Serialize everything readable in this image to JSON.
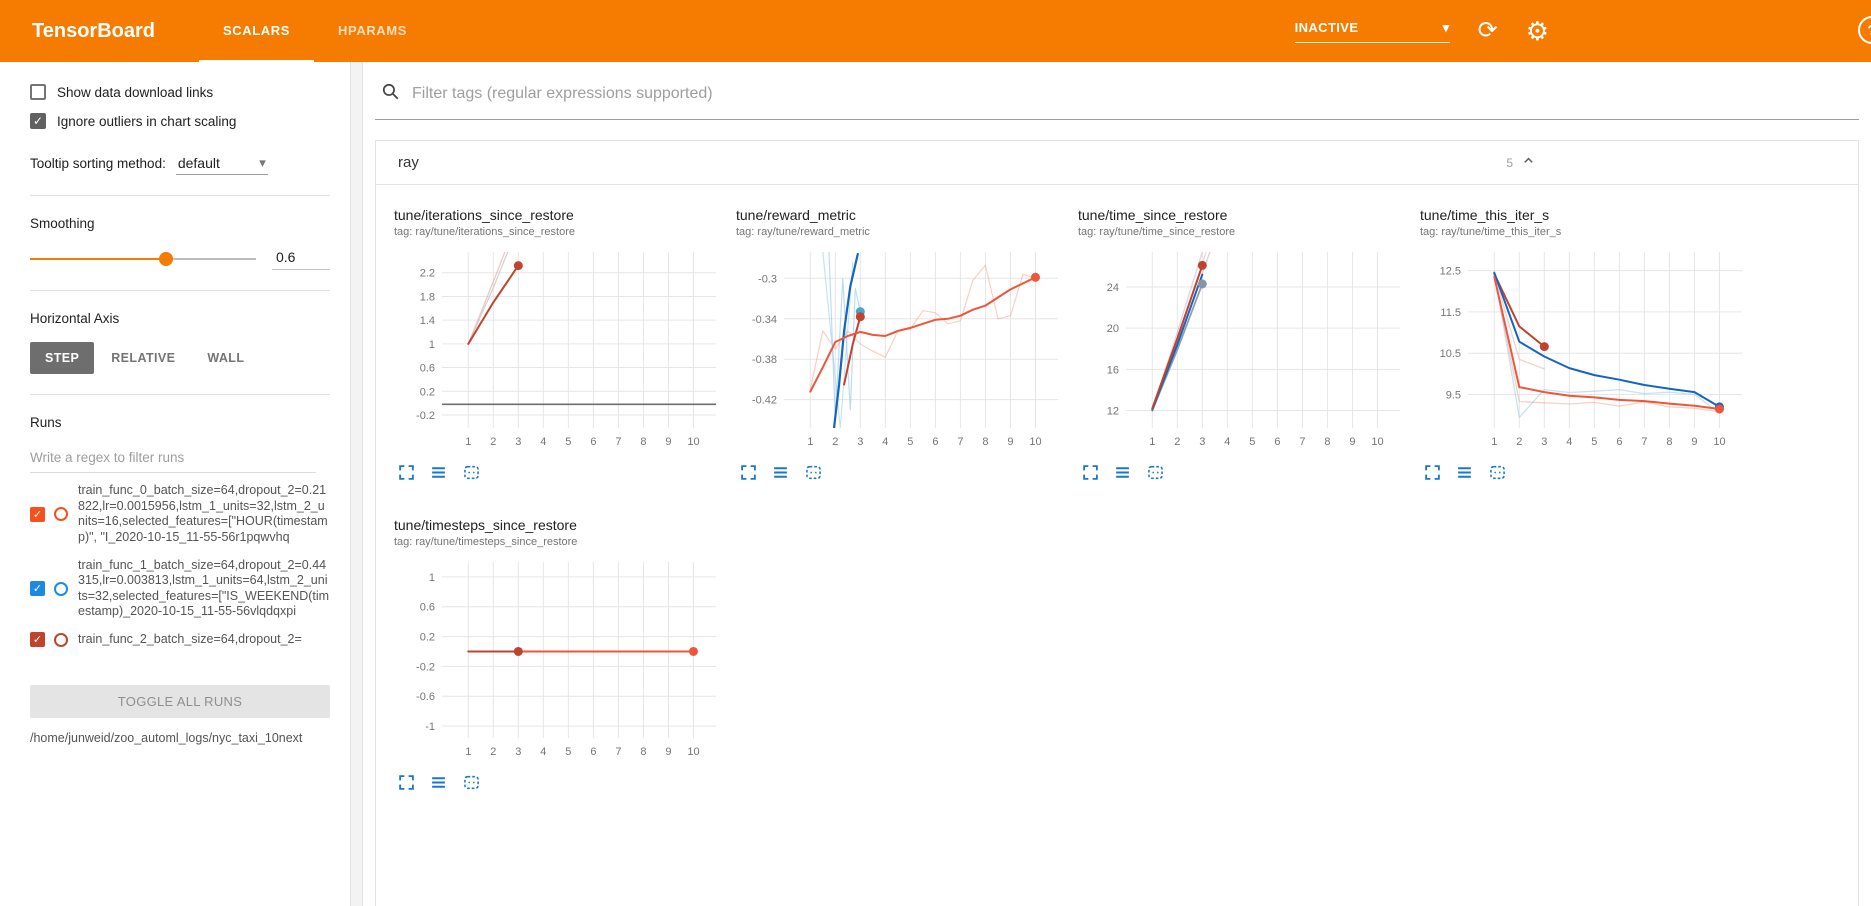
{
  "header": {
    "brand": "TensorBoard",
    "tabs": [
      {
        "label": "SCALARS",
        "active": true
      },
      {
        "label": "HPARAMS",
        "active": false
      }
    ],
    "status": "INACTIVE"
  },
  "sidebar": {
    "checkboxes": [
      {
        "label": "Show data download links",
        "checked": false
      },
      {
        "label": "Ignore outliers in chart scaling",
        "checked": true
      }
    ],
    "tooltip_sorting": {
      "label": "Tooltip sorting method:",
      "value": "default"
    },
    "smoothing": {
      "label": "Smoothing",
      "value": "0.6"
    },
    "horizontal_axis": {
      "label": "Horizontal Axis",
      "options": [
        "STEP",
        "RELATIVE",
        "WALL"
      ],
      "selected": "STEP"
    },
    "runs": {
      "label": "Runs",
      "filter_placeholder": "Write a regex to filter runs",
      "items": [
        {
          "name": "train_func_0_batch_size=64,dropout_2=0.21822,lr=0.0015956,lstm_1_units=32,lstm_2_units=16,selected_features=[\"HOUR(timestamp)\", \"I_2020-10-15_11-55-56r1pqwvhq",
          "color": "#f4511e",
          "checked": true
        },
        {
          "name": "train_func_1_batch_size=64,dropout_2=0.44315,lr=0.003813,lstm_1_units=64,lstm_2_units=32,selected_features=[\"IS_WEEKEND(timestamp)_2020-10-15_11-55-56vlqdqxpi",
          "color": "#1e88e5",
          "checked": true
        },
        {
          "name": "train_func_2_batch_size=64,dropout_2=",
          "color": "#c0432d",
          "checked": true
        }
      ],
      "toggle_all": "TOGGLE ALL RUNS",
      "log_dir": "/home/junweid/zoo_automl_logs/nyc_taxi_10next"
    }
  },
  "main": {
    "filter_placeholder": "Filter tags (regular expressions supported)",
    "card": {
      "title": "ray",
      "count": "5"
    }
  },
  "colors": {
    "header": "#f57c00",
    "accent_blue": "#1976d2",
    "run_orange": "#f4511e",
    "run_blue": "#1e88e5",
    "line_darkred": "#c0432d",
    "line_blue": "#1565c0",
    "line_orange": "#ef553a"
  },
  "chart_data": [
    {
      "type": "line",
      "title": "tune/iterations_since_restore",
      "tag": "tag: ray/tune/iterations_since_restore",
      "xlim": [
        -0.05,
        10.9
      ],
      "ylim": [
        -0.42,
        2.55
      ],
      "xticks": [
        1,
        2,
        3,
        4,
        5,
        6,
        7,
        8,
        9,
        10
      ],
      "yticks": [
        {
          "v": -0.2,
          "label": "-0.2"
        },
        {
          "v": 0.2,
          "label": "0.2"
        },
        {
          "v": 0.6,
          "label": "0.6"
        },
        {
          "v": 1,
          "label": "1"
        },
        {
          "v": 1.4,
          "label": "1.4"
        },
        {
          "v": 1.8,
          "label": "1.8"
        },
        {
          "v": 2.2,
          "label": "2.2"
        }
      ],
      "series": [
        {
          "color": "#e59a8e",
          "opacity": 0.55,
          "width": 1.3,
          "points": [
            [
              1,
              1
            ],
            [
              2,
              2.05
            ],
            [
              3.25,
              3.4
            ]
          ]
        },
        {
          "color": "#c2c2c2",
          "opacity": 0.7,
          "width": 1.3,
          "points": [
            [
              1,
              1
            ],
            [
              2,
              1.95
            ],
            [
              3.4,
              3.4
            ]
          ]
        },
        {
          "color": "#c0432d",
          "opacity": 1,
          "width": 2,
          "points": [
            [
              1,
              1
            ],
            [
              2,
              1.7
            ],
            [
              3,
              2.32
            ]
          ],
          "dots": [
            [
              3,
              2.32
            ]
          ]
        },
        {
          "color": "#6e6e6e",
          "opacity": 1,
          "width": 1.6,
          "points": [
            [
              -0.05,
              -0.02
            ],
            [
              10.9,
              -0.02
            ]
          ]
        }
      ]
    },
    {
      "type": "line",
      "title": "tune/reward_metric",
      "tag": "tag: ray/tune/reward_metric",
      "xlim": [
        -0.05,
        10.9
      ],
      "ylim": [
        -0.448,
        -0.274
      ],
      "xticks": [
        1,
        2,
        3,
        4,
        5,
        6,
        7,
        8,
        9,
        10
      ],
      "yticks": [
        {
          "v": -0.42,
          "label": "-0.42"
        },
        {
          "v": -0.38,
          "label": "-0.38"
        },
        {
          "v": -0.34,
          "label": "-0.34"
        },
        {
          "v": -0.3,
          "label": "-0.3"
        }
      ],
      "series": [
        {
          "color": "#f0977f",
          "opacity": 0.45,
          "width": 1.2,
          "points": [
            [
              1,
              -0.41
            ],
            [
              1.5,
              -0.352
            ],
            [
              2,
              -0.37
            ],
            [
              2.5,
              -0.352
            ],
            [
              3,
              -0.365
            ],
            [
              3.5,
              -0.372
            ],
            [
              4,
              -0.378
            ],
            [
              4.5,
              -0.352
            ],
            [
              5,
              -0.35
            ],
            [
              5.5,
              -0.332
            ],
            [
              6,
              -0.334
            ],
            [
              6.5,
              -0.345
            ],
            [
              7,
              -0.342
            ],
            [
              7.5,
              -0.302
            ],
            [
              8,
              -0.287
            ],
            [
              8.5,
              -0.34
            ],
            [
              9,
              -0.337
            ],
            [
              9.5,
              -0.296
            ],
            [
              10,
              -0.3
            ]
          ]
        },
        {
          "color": "#b8dcf0",
          "opacity": 0.8,
          "width": 1.2,
          "points": [
            [
              1.5,
              -0.274
            ],
            [
              2.2,
              -0.448
            ],
            [
              2.7,
              -0.284
            ]
          ]
        },
        {
          "color": "#8fc6e8",
          "opacity": 0.6,
          "width": 1.2,
          "points": [
            [
              1.75,
              -0.274
            ],
            [
              2,
              -0.44
            ],
            [
              2.3,
              -0.3
            ],
            [
              2.6,
              -0.43
            ],
            [
              2.8,
              -0.31
            ],
            [
              3,
              -0.333
            ]
          ],
          "dots": [
            [
              3,
              -0.333
            ]
          ],
          "dot_color": "#46a6cc"
        },
        {
          "color": "#1565c0",
          "opacity": 1,
          "width": 2.2,
          "points": [
            [
              1.95,
              -0.448
            ],
            [
              2.15,
              -0.405
            ],
            [
              2.35,
              -0.352
            ],
            [
              2.6,
              -0.308
            ],
            [
              2.9,
              -0.276
            ]
          ]
        },
        {
          "color": "#c0432d",
          "opacity": 1,
          "width": 2,
          "points": [
            [
              2.35,
              -0.405
            ],
            [
              2.7,
              -0.365
            ],
            [
              3,
              -0.338
            ]
          ],
          "dots": [
            [
              3,
              -0.338
            ]
          ]
        },
        {
          "color": "#ef553a",
          "opacity": 1,
          "width": 2,
          "points": [
            [
              1,
              -0.412
            ],
            [
              1.5,
              -0.388
            ],
            [
              2,
              -0.363
            ],
            [
              2.5,
              -0.357
            ],
            [
              3,
              -0.353
            ],
            [
              3.5,
              -0.356
            ],
            [
              4,
              -0.357
            ],
            [
              4.5,
              -0.352
            ],
            [
              5,
              -0.349
            ],
            [
              5.5,
              -0.345
            ],
            [
              6,
              -0.341
            ],
            [
              6.5,
              -0.34
            ],
            [
              7,
              -0.337
            ],
            [
              7.5,
              -0.331
            ],
            [
              8,
              -0.327
            ],
            [
              8.5,
              -0.319
            ],
            [
              9,
              -0.311
            ],
            [
              9.5,
              -0.305
            ],
            [
              10,
              -0.299
            ]
          ],
          "dots": [
            [
              10,
              -0.299
            ]
          ]
        }
      ]
    },
    {
      "type": "line",
      "title": "tune/time_since_restore",
      "tag": "tag: ray/tune/time_since_restore",
      "xlim": [
        -0.05,
        10.9
      ],
      "ylim": [
        10.3,
        27.4
      ],
      "xticks": [
        1,
        2,
        3,
        4,
        5,
        6,
        7,
        8,
        9,
        10
      ],
      "yticks": [
        {
          "v": 12,
          "label": "12"
        },
        {
          "v": 16,
          "label": "16"
        },
        {
          "v": 20,
          "label": "20"
        },
        {
          "v": 24,
          "label": "24"
        }
      ],
      "series": [
        {
          "color": "#b9aecb",
          "opacity": 0.5,
          "width": 1.3,
          "points": [
            [
              1,
              12
            ],
            [
              2,
              19.6
            ],
            [
              3,
              27.4
            ]
          ]
        },
        {
          "color": "#e5a79b",
          "opacity": 0.45,
          "width": 1.3,
          "points": [
            [
              1,
              12
            ],
            [
              2,
              18.9
            ],
            [
              3.15,
              27.4
            ]
          ]
        },
        {
          "color": "#c4c4c4",
          "opacity": 0.7,
          "width": 1.3,
          "points": [
            [
              1,
              11.9
            ],
            [
              2,
              18.2
            ],
            [
              3.3,
              27.4
            ]
          ]
        },
        {
          "color": "#8196a8",
          "opacity": 0.9,
          "width": 1.8,
          "points": [
            [
              1,
              12
            ],
            [
              2,
              17.9
            ],
            [
              3,
              24.3
            ]
          ],
          "dots": [
            [
              3,
              24.3
            ]
          ]
        },
        {
          "color": "#1565c0",
          "opacity": 1,
          "width": 2,
          "points": [
            [
              1,
              12.1
            ],
            [
              2,
              18.4
            ],
            [
              3,
              25.2
            ]
          ]
        },
        {
          "color": "#c0432d",
          "opacity": 1,
          "width": 2,
          "points": [
            [
              1,
              12.2
            ],
            [
              2,
              19
            ],
            [
              3,
              26.1
            ]
          ],
          "dots": [
            [
              3,
              26.1
            ]
          ]
        }
      ]
    },
    {
      "type": "line",
      "title": "tune/time_this_iter_s",
      "tag": "tag: ray/tune/time_this_iter_s",
      "xlim": [
        -0.05,
        10.9
      ],
      "ylim": [
        8.69,
        12.95
      ],
      "xticks": [
        1,
        2,
        3,
        4,
        5,
        6,
        7,
        8,
        9,
        10
      ],
      "yticks": [
        {
          "v": 9.5,
          "label": "9.5"
        },
        {
          "v": 10.5,
          "label": "10.5"
        },
        {
          "v": 11.5,
          "label": "11.5"
        },
        {
          "v": 12.5,
          "label": "12.5"
        }
      ],
      "series": [
        {
          "color": "#8fc6e8",
          "opacity": 0.5,
          "width": 1.3,
          "points": [
            [
              1,
              12.45
            ],
            [
              2,
              8.95
            ],
            [
              3,
              9.62
            ],
            [
              4,
              9.55
            ],
            [
              5,
              9.58
            ],
            [
              6,
              9.62
            ],
            [
              7,
              9.52
            ],
            [
              8,
              9.56
            ],
            [
              9,
              9.5
            ],
            [
              10,
              9.05
            ]
          ]
        },
        {
          "color": "#f0977f",
          "opacity": 0.45,
          "width": 1.3,
          "points": [
            [
              1,
              12.35
            ],
            [
              2,
              9.33
            ],
            [
              3,
              9.3
            ],
            [
              4,
              9.27
            ],
            [
              5,
              9.31
            ],
            [
              6,
              9.22
            ],
            [
              7,
              9.32
            ],
            [
              8,
              9.2
            ],
            [
              9,
              9.17
            ],
            [
              10,
              9.08
            ]
          ]
        },
        {
          "color": "#e5a79b",
          "opacity": 0.5,
          "width": 1.3,
          "points": [
            [
              1,
              12.42
            ],
            [
              2,
              10.35
            ],
            [
              3,
              10.12
            ]
          ]
        },
        {
          "color": "#c0432d",
          "opacity": 1,
          "width": 2,
          "points": [
            [
              1,
              12.42
            ],
            [
              2,
              11.15
            ],
            [
              3,
              10.66
            ]
          ],
          "dots": [
            [
              3,
              10.66
            ]
          ]
        },
        {
          "color": "#1565c0",
          "opacity": 1,
          "width": 2,
          "points": [
            [
              1,
              12.45
            ],
            [
              2,
              10.78
            ],
            [
              3,
              10.42
            ],
            [
              4,
              10.14
            ],
            [
              5,
              9.97
            ],
            [
              6,
              9.86
            ],
            [
              7,
              9.73
            ],
            [
              8,
              9.64
            ],
            [
              9,
              9.56
            ],
            [
              10,
              9.2
            ]
          ],
          "dots": [
            [
              10,
              9.2
            ]
          ]
        },
        {
          "color": "#ef553a",
          "opacity": 1,
          "width": 2,
          "points": [
            [
              1,
              12.35
            ],
            [
              2,
              9.68
            ],
            [
              3,
              9.56
            ],
            [
              4,
              9.47
            ],
            [
              5,
              9.43
            ],
            [
              6,
              9.37
            ],
            [
              7,
              9.34
            ],
            [
              8,
              9.28
            ],
            [
              9,
              9.23
            ],
            [
              10,
              9.15
            ]
          ],
          "dots": [
            [
              10,
              9.15
            ]
          ]
        }
      ]
    },
    {
      "type": "line",
      "title": "tune/timesteps_since_restore",
      "tag": "tag: ray/tune/timesteps_since_restore",
      "xlim": [
        -0.05,
        10.9
      ],
      "ylim": [
        -1.16,
        1.2
      ],
      "xticks": [
        1,
        2,
        3,
        4,
        5,
        6,
        7,
        8,
        9,
        10
      ],
      "yticks": [
        {
          "v": -1,
          "label": "-1"
        },
        {
          "v": -0.6,
          "label": "-0.6"
        },
        {
          "v": -0.2,
          "label": "-0.2"
        },
        {
          "v": 0.2,
          "label": "0.2"
        },
        {
          "v": 0.6,
          "label": "0.6"
        },
        {
          "v": 1,
          "label": "1"
        }
      ],
      "series": [
        {
          "color": "#9e9e9e",
          "opacity": 0.9,
          "width": 1.2,
          "points": [
            [
              1,
              0
            ],
            [
              10,
              0
            ]
          ]
        },
        {
          "color": "#ef553a",
          "opacity": 1,
          "width": 2,
          "points": [
            [
              1,
              0
            ],
            [
              10,
              0
            ]
          ],
          "dots": [
            [
              10,
              0
            ]
          ]
        },
        {
          "color": "#c0432d",
          "opacity": 1,
          "width": 2,
          "points": [
            [
              1,
              0
            ],
            [
              3,
              0
            ]
          ],
          "dots": [
            [
              3,
              0
            ]
          ]
        }
      ]
    }
  ]
}
